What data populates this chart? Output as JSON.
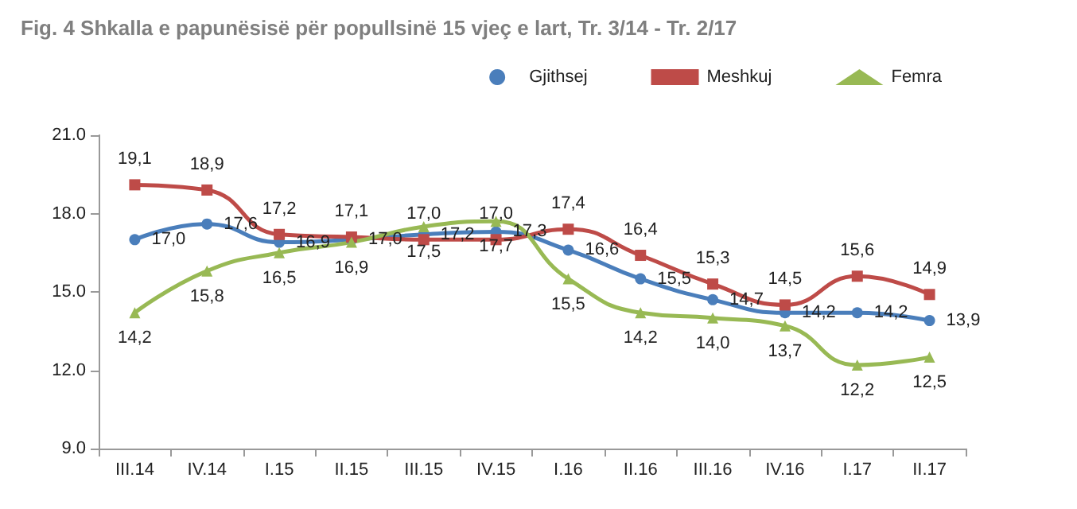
{
  "chart_data": {
    "type": "line",
    "title": "Fig. 4 Shkalla e papunësisë për popullsinë 15 vjeç e lart, Tr. 3/14 - Tr. 2/17",
    "categories": [
      "III.14",
      "IV.14",
      "I.15",
      "II.15",
      "III.15",
      "IV.15",
      "I.16",
      "II.16",
      "III.16",
      "IV.16",
      "I.17",
      "II.17"
    ],
    "series": [
      {
        "name": "Gjithsej",
        "color": "#4a7ebb",
        "marker": "circle",
        "values": [
          17.0,
          17.6,
          16.9,
          17.0,
          17.2,
          17.3,
          16.6,
          15.5,
          14.7,
          14.2,
          14.2,
          13.9
        ],
        "value_labels": [
          "17,0",
          "17,6",
          "16,9",
          "17,0",
          "17,2",
          "17,3",
          "16,6",
          "15,5",
          "14,7",
          "14,2",
          "14,2",
          "13,9"
        ]
      },
      {
        "name": "Meshkuj",
        "color": "#be4b48",
        "marker": "square",
        "values": [
          19.1,
          18.9,
          17.2,
          17.1,
          17.0,
          17.0,
          17.4,
          16.4,
          15.3,
          14.5,
          15.6,
          14.9
        ],
        "value_labels": [
          "19,1",
          "18,9",
          "17,2",
          "17,1",
          "17,0",
          "17,0",
          "17,4",
          "16,4",
          "15,3",
          "14,5",
          "15,6",
          "14,9"
        ]
      },
      {
        "name": "Femra",
        "color": "#98b954",
        "marker": "triangle",
        "values": [
          14.2,
          15.8,
          16.5,
          16.9,
          17.5,
          17.7,
          15.5,
          14.2,
          14.0,
          13.7,
          12.2,
          12.5
        ],
        "value_labels": [
          "14,2",
          "15,8",
          "16,5",
          "16,9",
          "17,5",
          "17,7",
          "15,5",
          "14,2",
          "14,0",
          "13,7",
          "12,2",
          "12,5"
        ]
      }
    ],
    "ylim": [
      9,
      21
    ],
    "yticks": [
      {
        "value": 9,
        "label": "9.0"
      },
      {
        "value": 12,
        "label": "12.0"
      },
      {
        "value": 15,
        "label": "15.0"
      },
      {
        "value": 18,
        "label": "18.0"
      },
      {
        "value": 21,
        "label": "21.0"
      }
    ],
    "grid": false,
    "legend": "top right"
  }
}
